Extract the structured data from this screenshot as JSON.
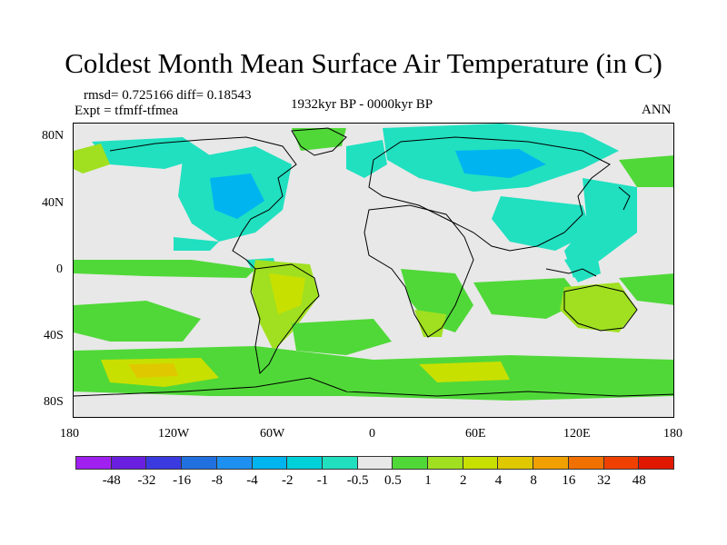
{
  "title": "Coldest Month Mean Surface Air Temperature (in C)",
  "stats_line": "rmsd= 0.725166 diff= 0.18543",
  "expt_line": "Expt = tfmff-tfmea",
  "period_line": "1932kyr BP - 0000kyr BP",
  "season_label": "ANN",
  "lat_ticks": [
    "80N",
    "40N",
    "0",
    "40S",
    "80S"
  ],
  "lon_ticks": [
    "180",
    "120W",
    "60W",
    "0",
    "60E",
    "120E",
    "180"
  ],
  "colorbar": {
    "colors": [
      "#a020f0",
      "#6a1ee0",
      "#3a3ae0",
      "#2070e0",
      "#1e90f0",
      "#00b4f0",
      "#00d0d8",
      "#20e0c0",
      "#e8e8e8",
      "#50d838",
      "#a0e020",
      "#c8e000",
      "#e0c800",
      "#f0a000",
      "#f07000",
      "#f04000",
      "#e01800"
    ],
    "labels": [
      "-48",
      "-32",
      "-16",
      "-8",
      "-4",
      "-2",
      "-1",
      "-0.5",
      "0.5",
      "1",
      "2",
      "4",
      "8",
      "16",
      "32",
      "48"
    ]
  },
  "anomaly_colors": {
    "cool_strong": "#00b4f0",
    "cool": "#20e0c0",
    "neutral": "#e8e8e8",
    "warm": "#50d838",
    "warm_mid": "#a0e020",
    "warm_strong": "#c8e000",
    "warm_peak": "#e0c800"
  }
}
